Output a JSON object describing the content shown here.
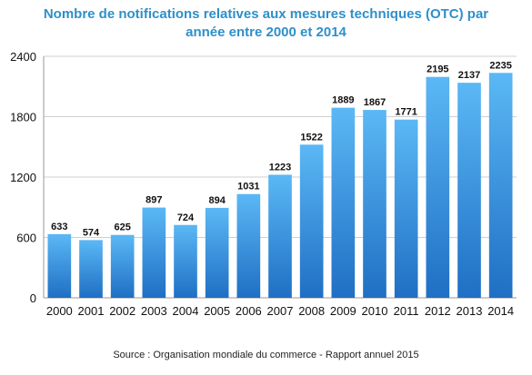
{
  "chart_data": {
    "type": "bar",
    "title_line1": "Nombre de notifications relatives aux mesures techniques (OTC) par",
    "title_line2": "année entre 2000 et 2014",
    "categories": [
      "2000",
      "2001",
      "2002",
      "2003",
      "2004",
      "2005",
      "2006",
      "2007",
      "2008",
      "2009",
      "2010",
      "2011",
      "2012",
      "2013",
      "2014"
    ],
    "values": [
      633,
      574,
      625,
      897,
      724,
      894,
      1031,
      1223,
      1522,
      1889,
      1867,
      1771,
      2195,
      2137,
      2235
    ],
    "ylim": [
      0,
      2400
    ],
    "yticks": [
      0,
      600,
      1200,
      1800,
      2400
    ],
    "grid": true,
    "bar_color_top": "#5bb8f5",
    "bar_color_bottom": "#1f6fc4",
    "source": "Source : Organisation mondiale du commerce - Rapport annuel 2015"
  }
}
